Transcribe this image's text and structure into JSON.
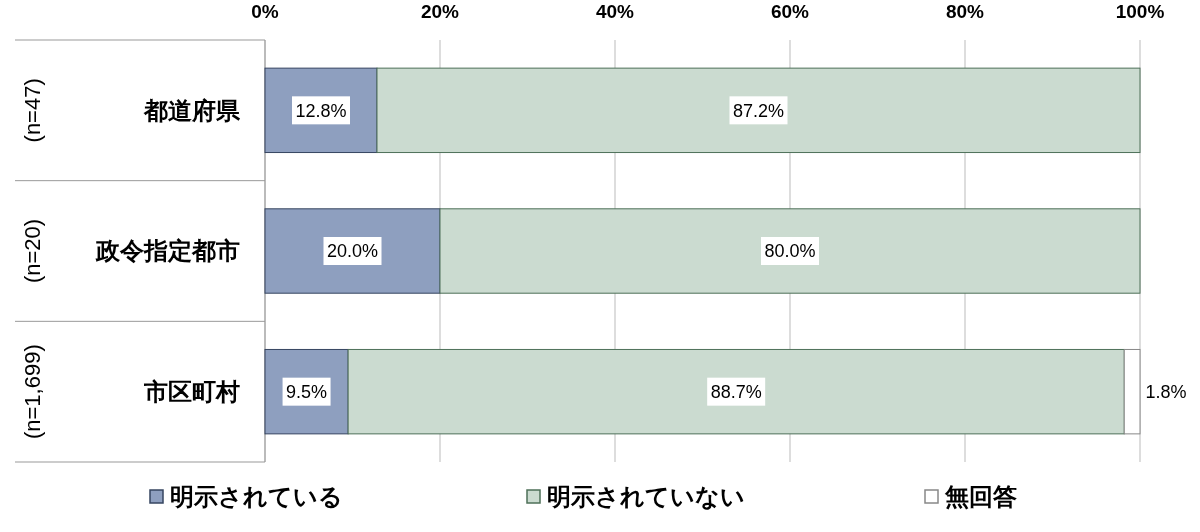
{
  "chart_data": {
    "type": "bar",
    "orientation": "horizontal",
    "stacked": true,
    "categories": [
      "都道府県",
      "政令指定都市",
      "市区町村"
    ],
    "series": [
      {
        "name": "明示されている",
        "color": "#8e9fbf",
        "values": [
          12.8,
          20.0,
          9.5
        ],
        "value_labels": [
          "12.8%",
          "20.0%",
          "9.5%"
        ]
      },
      {
        "name": "明示されていない",
        "color": "#cbdbd0",
        "values": [
          87.2,
          80.0,
          88.7
        ],
        "value_labels": [
          "87.2%",
          "80.0%",
          "88.7%"
        ]
      },
      {
        "name": "無回答",
        "color": "#ffffff",
        "values": [
          null,
          null,
          1.8
        ],
        "value_labels": [
          null,
          null,
          "1.8%"
        ]
      }
    ],
    "xlim": [
      0,
      100
    ],
    "xticks": [
      {
        "value": 0,
        "label": "0%"
      },
      {
        "value": 20,
        "label": "20%"
      },
      {
        "value": 40,
        "label": "40%"
      },
      {
        "value": 60,
        "label": "60%"
      },
      {
        "value": 80,
        "label": "80%"
      },
      {
        "value": 100,
        "label": "100%"
      }
    ],
    "grid": "x",
    "legend": "bottom",
    "annotations": [
      "(n=47)",
      "(n=20)",
      "(n=1,699)"
    ]
  }
}
